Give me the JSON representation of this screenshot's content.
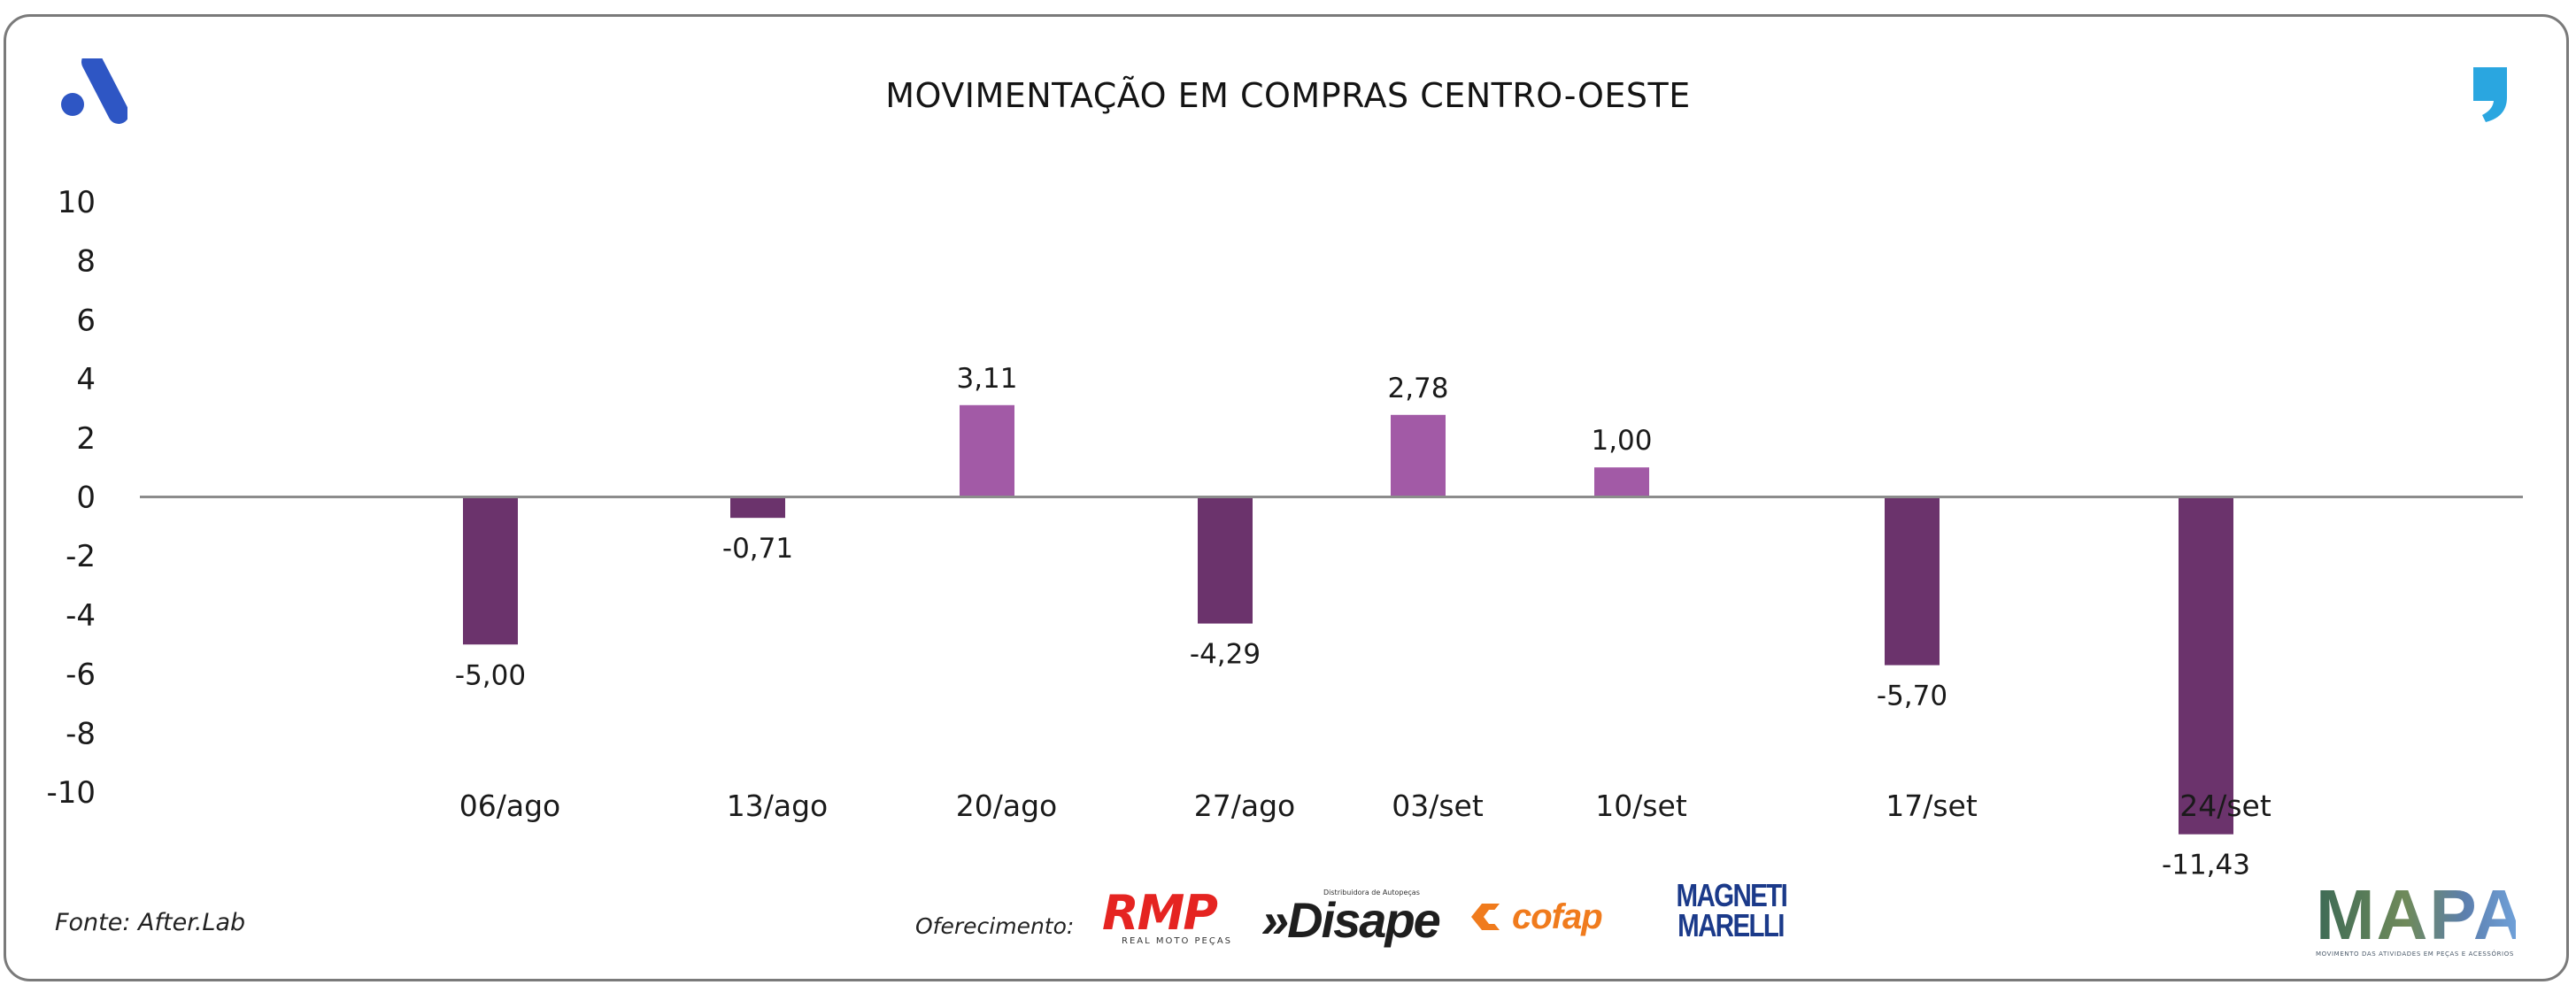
{
  "header": {
    "title": "MOVIMENTAÇÃO EM COMPRAS CENTRO-OESTE"
  },
  "brand_icons": [
    "app-logo-icon",
    "quote-icon"
  ],
  "footer": {
    "source": "Fonte: After.Lab",
    "sponsor_label": "Oferecimento:",
    "sponsors": {
      "rmp": {
        "name": "RMP",
        "tagline": "REAL MOTO PEÇAS"
      },
      "disape": {
        "name": "Disape",
        "tagline": "Distribuidora de Autopeças"
      },
      "cofap": {
        "name": "cofap"
      },
      "magneti": {
        "line1": "MAGNETI",
        "line2": "MARELLI"
      }
    },
    "mapa": {
      "name": "MAPA",
      "tagline": "MOVIMENTO DAS ATIVIDADES EM PEÇAS E ACESSÓRIOS"
    }
  },
  "colors": {
    "negative": "#6b336c",
    "positive": "#a25aa6",
    "axis": "#8c8c8c",
    "text": "#1a1a1a"
  },
  "chart_data": {
    "type": "bar",
    "title": "MOVIMENTAÇÃO EM COMPRAS CENTRO-OESTE",
    "categories": [
      "06/ago",
      "13/ago",
      "20/ago",
      "27/ago",
      "03/set",
      "10/set",
      "17/set",
      "24/set"
    ],
    "values": [
      -5.0,
      -0.71,
      3.11,
      -4.29,
      2.78,
      1.0,
      -5.7,
      -11.43
    ],
    "value_labels": [
      "-5,00",
      "-0,71",
      "3,11",
      "-4,29",
      "2,78",
      "1,00",
      "-5,70",
      "-11,43"
    ],
    "yticks": [
      10,
      8,
      6,
      4,
      2,
      0,
      -2,
      -4,
      -6,
      -8,
      -10
    ],
    "ylim": [
      -10,
      10
    ],
    "xlabel": "",
    "ylabel": "",
    "grid": false,
    "legend": "none"
  }
}
